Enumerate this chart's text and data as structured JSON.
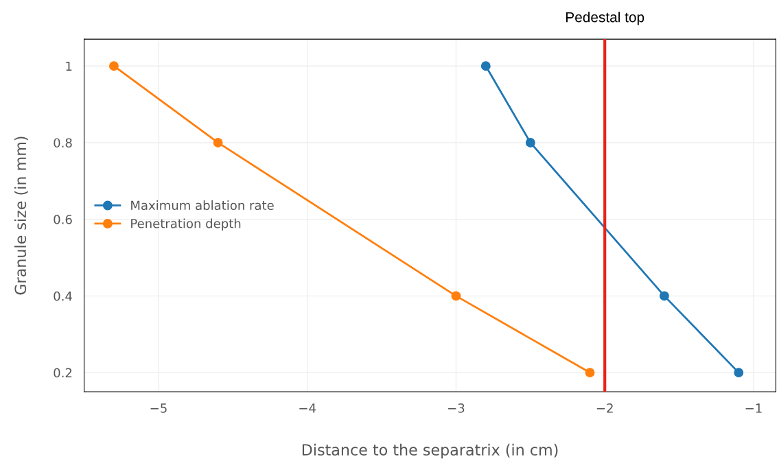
{
  "chart_data": {
    "type": "line",
    "xlabel": "Distance to the separatrix (in cm)",
    "ylabel": "Granule size (in mm)",
    "series": [
      {
        "name": "Maximum ablation rate",
        "color": "#1f77b4",
        "x": [
          -2.8,
          -2.5,
          -1.6,
          -1.1
        ],
        "values": [
          1.0,
          0.8,
          0.4,
          0.2
        ]
      },
      {
        "name": "Penetration depth",
        "color": "#ff7f0e",
        "x": [
          -5.3,
          -4.6,
          -3.0,
          -2.1
        ],
        "values": [
          1.0,
          0.8,
          0.4,
          0.2
        ]
      }
    ],
    "xlim": [
      -5.5,
      -0.85
    ],
    "xticks": [
      {
        "value": -5,
        "label": "−5"
      },
      {
        "value": -4,
        "label": "−4"
      },
      {
        "value": -3,
        "label": "−3"
      },
      {
        "value": -2,
        "label": "−2"
      },
      {
        "value": -1,
        "label": "−1"
      }
    ],
    "ylim": [
      0.15,
      1.07
    ],
    "yticks": [
      0.2,
      0.4,
      0.6,
      0.8,
      1
    ],
    "ref_lines": [
      {
        "axis": "x",
        "value": -2.0,
        "label": "Pedestal top",
        "color": "#e8231a"
      }
    ],
    "grid": true,
    "legend": "left",
    "marker": "circle",
    "line_style": "solid"
  }
}
